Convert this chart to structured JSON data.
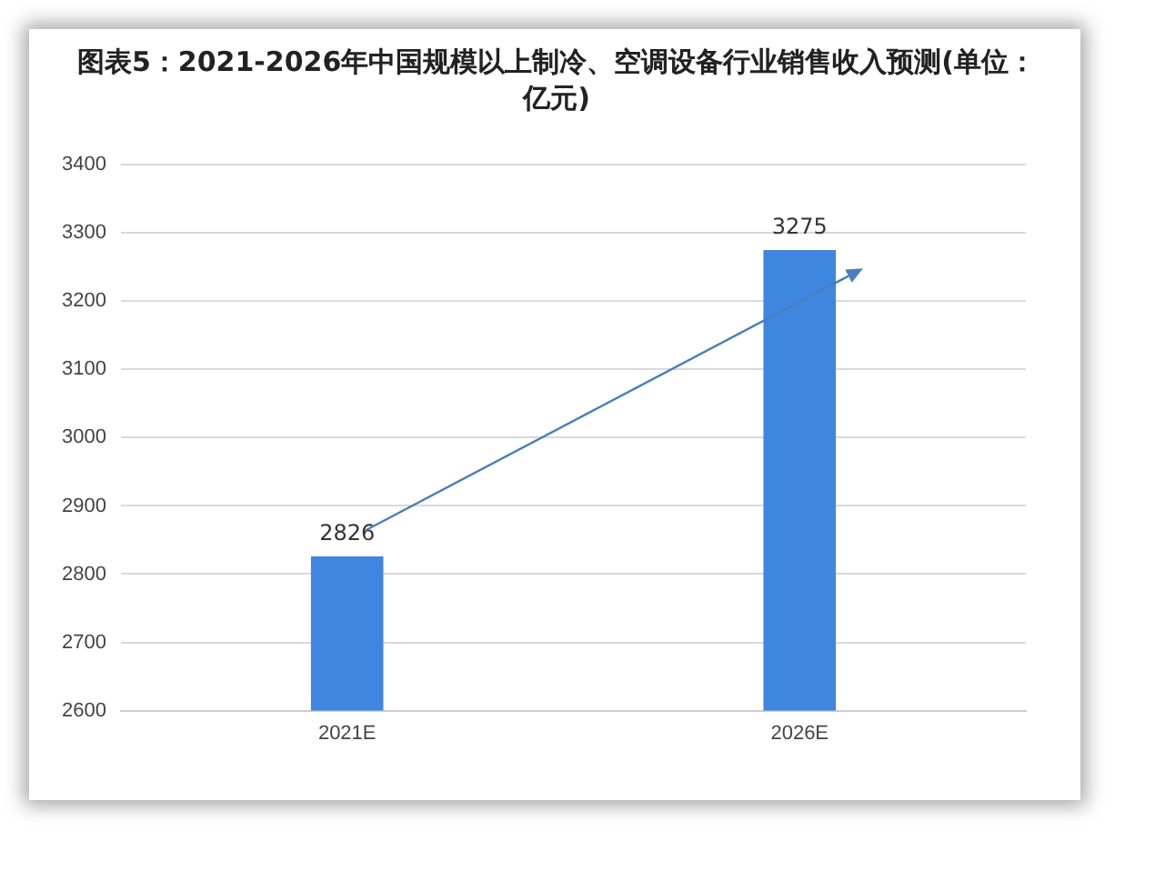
{
  "chart_data": {
    "type": "bar",
    "title": "图表5：2021-2026年中国规模以上制冷、空调设备行业销售收入预测(单位：亿元)",
    "categories": [
      "2021E",
      "2026E"
    ],
    "values": [
      2826,
      3275
    ],
    "color": "#3f86e0",
    "ylim": [
      2600,
      3400
    ],
    "yticks": [
      2600,
      2700,
      2800,
      2900,
      3000,
      3100,
      3200,
      3300,
      3400
    ],
    "grid": "y",
    "data_labels": true
  }
}
